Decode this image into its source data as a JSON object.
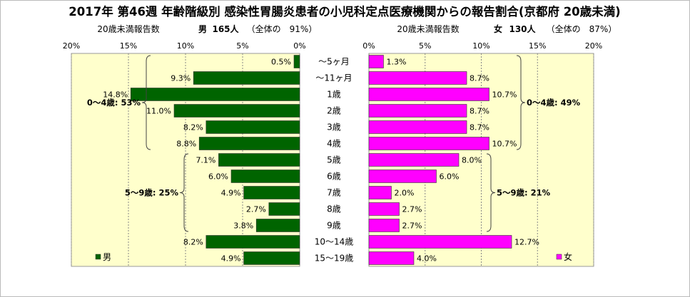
{
  "title": "2017年 第46週 年齢階級別 感染性胃腸炎患者の小児科定点医療機関からの報告割合(京都府 20歳未満)",
  "male_header": {
    "left": "20歳未満報告数",
    "sex": "男",
    "count": "165人",
    "share": "（全体の　91%）"
  },
  "female_header": {
    "left": "20歳未満報告数",
    "sex": "女",
    "count": "130人",
    "share": "（全体の　87%）"
  },
  "colors": {
    "male": "#006400",
    "female": "#ff00ff",
    "plot_bg": "#ffffcc",
    "gridline": "#888888"
  },
  "chart_data": [
    {
      "type": "bar",
      "orientation": "horizontal",
      "direction": "right-to-left",
      "categories": [
        "～5ヶ月",
        "～11ヶ月",
        "1歳",
        "2歳",
        "3歳",
        "4歳",
        "5歳",
        "6歳",
        "7歳",
        "8歳",
        "9歳",
        "10～14歳",
        "15～19歳"
      ],
      "series": [
        {
          "name": "男",
          "values": [
            0.5,
            9.3,
            14.8,
            11.0,
            8.2,
            8.8,
            7.1,
            6.0,
            4.9,
            2.7,
            3.8,
            8.2,
            4.9
          ]
        }
      ],
      "value_labels": [
        "0.5%",
        "9.3%",
        "14.8%",
        "11.0%",
        "8.2%",
        "8.8%",
        "7.1%",
        "6.0%",
        "4.9%",
        "2.7%",
        "3.8%",
        "8.2%",
        "4.9%"
      ],
      "xlim": [
        0,
        20
      ],
      "xticks": [
        "20%",
        "15%",
        "10%",
        "5%",
        "0%"
      ],
      "grid": true,
      "legend": "bottom-left",
      "annotations": [
        {
          "text": "0～4歳: 53%",
          "from": "～5ヶ月",
          "to": "4歳"
        },
        {
          "text": "5～9歳: 25%",
          "from": "5歳",
          "to": "9歳"
        }
      ]
    },
    {
      "type": "bar",
      "orientation": "horizontal",
      "direction": "left-to-right",
      "categories": [
        "～5ヶ月",
        "～11ヶ月",
        "1歳",
        "2歳",
        "3歳",
        "4歳",
        "5歳",
        "6歳",
        "7歳",
        "8歳",
        "9歳",
        "10～14歳",
        "15～19歳"
      ],
      "series": [
        {
          "name": "女",
          "values": [
            1.3,
            8.7,
            10.7,
            8.7,
            8.7,
            10.7,
            8.0,
            6.0,
            2.0,
            2.7,
            2.7,
            12.7,
            4.0
          ]
        }
      ],
      "value_labels": [
        "1.3%",
        "8.7%",
        "10.7%",
        "8.7%",
        "8.7%",
        "10.7%",
        "8.0%",
        "6.0%",
        "2.0%",
        "2.7%",
        "2.7%",
        "12.7%",
        "4.0%"
      ],
      "xlim": [
        0,
        20
      ],
      "xticks": [
        "0%",
        "5%",
        "10%",
        "15%",
        "20%"
      ],
      "grid": true,
      "legend": "bottom-right",
      "annotations": [
        {
          "text": "0～4歳: 49%",
          "from": "～5ヶ月",
          "to": "4歳"
        },
        {
          "text": "5～9歳: 21%",
          "from": "5歳",
          "to": "9歳"
        }
      ]
    }
  ]
}
